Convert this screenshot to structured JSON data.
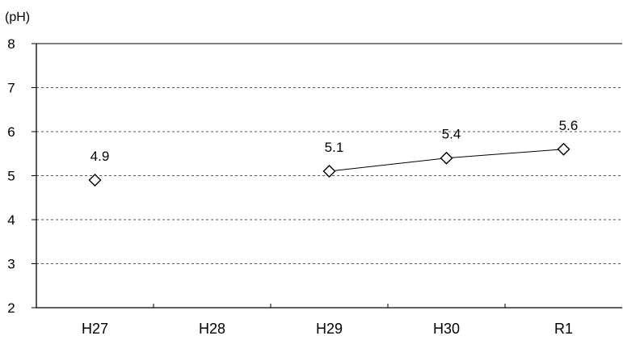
{
  "chart_data": {
    "type": "line",
    "title": "",
    "ylabel": "(pH)",
    "xlabel": "",
    "categories": [
      "H27",
      "H28",
      "H29",
      "H30",
      "R1"
    ],
    "series": [
      {
        "values": [
          4.9,
          null,
          5.1,
          5.4,
          5.6
        ],
        "marker": "diamond"
      }
    ],
    "data_labels": [
      "4.9",
      "",
      "5.1",
      "5.4",
      "5.6"
    ],
    "ylim": [
      2,
      8
    ],
    "yticks": [
      2,
      3,
      4,
      5,
      6,
      7,
      8
    ],
    "grid": "horizontal dashed",
    "line_color": "#000000",
    "marker_fill": "#ffffff"
  }
}
